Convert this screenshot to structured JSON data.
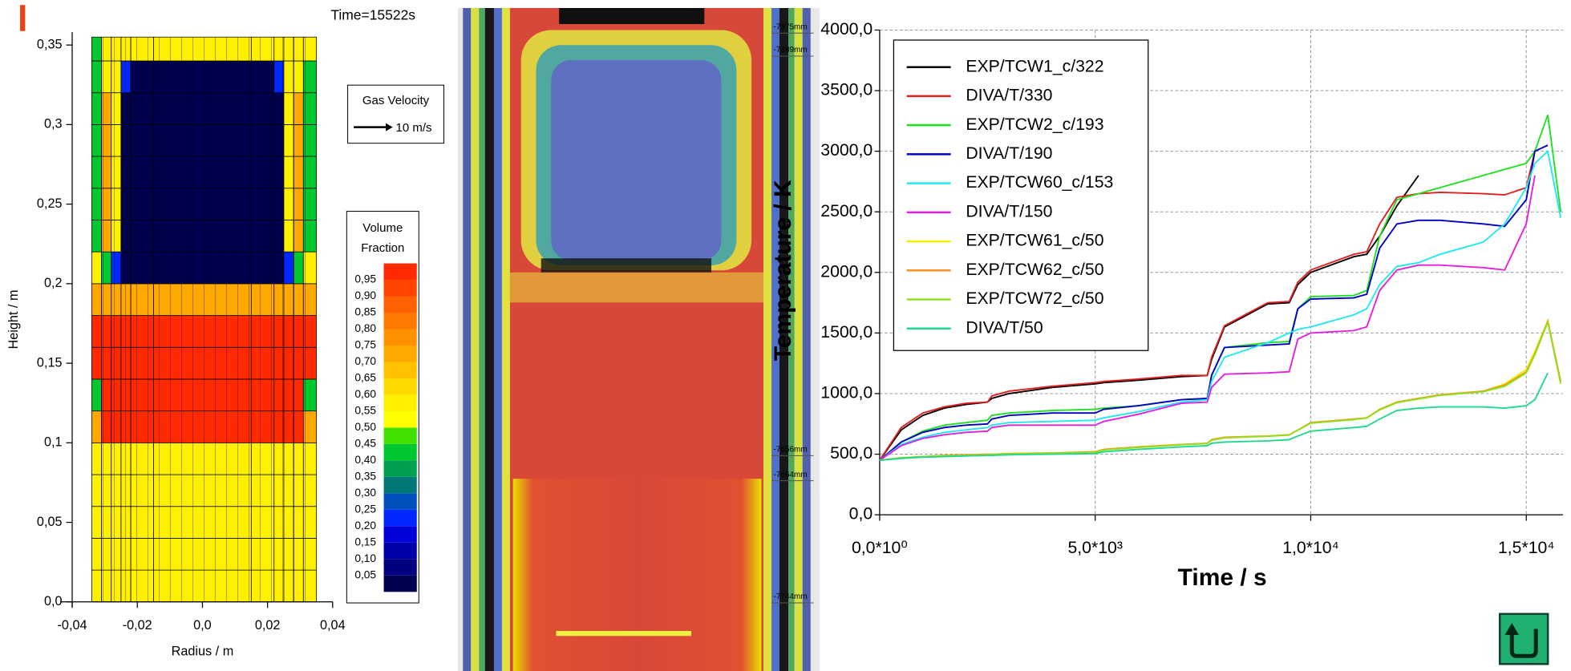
{
  "chart_data": [
    {
      "type": "heatmap",
      "title": "Time=15522s",
      "x_label": "Radius / m",
      "y_label": "Height / m",
      "xlim": [
        -0.04,
        0.04
      ],
      "ylim": [
        0,
        0.355
      ],
      "xticks": [
        {
          "value": -0.04,
          "label": "-0,04"
        },
        {
          "value": -0.02,
          "label": "-0,02"
        },
        {
          "value": 0,
          "label": "0,0"
        },
        {
          "value": 0.02,
          "label": "0,02"
        },
        {
          "value": 0.04,
          "label": "0,04"
        }
      ],
      "yticks": [
        {
          "value": 0,
          "label": "0,0"
        },
        {
          "value": 0.05,
          "label": "0,05"
        },
        {
          "value": 0.1,
          "label": "0,1"
        },
        {
          "value": 0.15,
          "label": "0,15"
        },
        {
          "value": 0.2,
          "label": "0,2"
        },
        {
          "value": 0.25,
          "label": "0,25"
        },
        {
          "value": 0.3,
          "label": "0,3"
        },
        {
          "value": 0.35,
          "label": "0,35"
        }
      ],
      "x_edges": [
        -0.034,
        -0.031,
        -0.028,
        -0.025,
        -0.022,
        -0.015,
        0.015,
        0.022,
        0.025,
        0.028,
        0.031,
        0.035
      ],
      "y_edges": [
        0,
        0.02,
        0.04,
        0.06,
        0.08,
        0.1,
        0.12,
        0.14,
        0.16,
        0.18,
        0.2,
        0.22,
        0.24,
        0.26,
        0.28,
        0.3,
        0.32,
        0.34,
        0.355
      ],
      "z": [
        [
          0.57,
          0.57,
          0.57,
          0.57,
          0.57,
          0.57,
          0.57,
          0.57,
          0.57,
          0.57,
          0.57
        ],
        [
          0.57,
          0.57,
          0.57,
          0.57,
          0.57,
          0.57,
          0.57,
          0.57,
          0.57,
          0.57,
          0.57
        ],
        [
          0.57,
          0.57,
          0.57,
          0.57,
          0.57,
          0.57,
          0.57,
          0.57,
          0.57,
          0.57,
          0.57
        ],
        [
          0.57,
          0.57,
          0.57,
          0.57,
          0.57,
          0.57,
          0.57,
          0.57,
          0.57,
          0.57,
          0.57
        ],
        [
          0.57,
          0.57,
          0.57,
          0.57,
          0.57,
          0.57,
          0.57,
          0.57,
          0.57,
          0.57,
          0.57
        ],
        [
          0.72,
          0.97,
          0.97,
          0.97,
          0.97,
          0.97,
          0.97,
          0.97,
          0.97,
          0.97,
          0.72
        ],
        [
          0.42,
          0.97,
          0.97,
          0.97,
          0.97,
          0.97,
          0.97,
          0.97,
          0.97,
          0.97,
          0.42
        ],
        [
          0.97,
          0.97,
          0.97,
          0.97,
          0.97,
          0.97,
          0.97,
          0.97,
          0.97,
          0.97,
          0.97
        ],
        [
          0.97,
          0.97,
          0.97,
          0.97,
          0.97,
          0.97,
          0.97,
          0.97,
          0.97,
          0.97,
          0.97
        ],
        [
          0.72,
          0.72,
          0.72,
          0.72,
          0.72,
          0.72,
          0.72,
          0.72,
          0.72,
          0.72,
          0.72
        ],
        [
          0.57,
          0.42,
          0.22,
          0.02,
          0.02,
          0.02,
          0.02,
          0.02,
          0.22,
          0.42,
          0.57
        ],
        [
          0.42,
          0.72,
          0.57,
          0.02,
          0.02,
          0.02,
          0.02,
          0.02,
          0.57,
          0.72,
          0.42
        ],
        [
          0.42,
          0.72,
          0.57,
          0.02,
          0.02,
          0.02,
          0.02,
          0.02,
          0.57,
          0.72,
          0.42
        ],
        [
          0.42,
          0.72,
          0.57,
          0.02,
          0.02,
          0.02,
          0.02,
          0.02,
          0.57,
          0.72,
          0.42
        ],
        [
          0.42,
          0.72,
          0.57,
          0.02,
          0.02,
          0.02,
          0.02,
          0.02,
          0.57,
          0.72,
          0.42
        ],
        [
          0.42,
          0.72,
          0.57,
          0.02,
          0.02,
          0.02,
          0.02,
          0.02,
          0.57,
          0.72,
          0.42
        ],
        [
          0.42,
          0.57,
          0.57,
          0.22,
          0.02,
          0.02,
          0.02,
          0.22,
          0.57,
          0.57,
          0.42
        ],
        [
          0.42,
          0.57,
          0.57,
          0.57,
          0.57,
          0.57,
          0.57,
          0.57,
          0.57,
          0.57,
          0.57
        ]
      ],
      "velocity_legend": {
        "title": "Gas Velocity",
        "label": "10 m/s"
      },
      "colorbar": {
        "title": [
          "Volume",
          "Fraction"
        ],
        "levels": [
          {
            "value": 0.05,
            "label": "0,05"
          },
          {
            "value": 0.1,
            "label": "0,10"
          },
          {
            "value": 0.15,
            "label": "0,15"
          },
          {
            "value": 0.2,
            "label": "0,20"
          },
          {
            "value": 0.25,
            "label": "0,25"
          },
          {
            "value": 0.3,
            "label": "0,30"
          },
          {
            "value": 0.35,
            "label": "0,35"
          },
          {
            "value": 0.4,
            "label": "0,40"
          },
          {
            "value": 0.45,
            "label": "0,45"
          },
          {
            "value": 0.5,
            "label": "0,50"
          },
          {
            "value": 0.55,
            "label": "0,55"
          },
          {
            "value": 0.6,
            "label": "0,60"
          },
          {
            "value": 0.65,
            "label": "0,65"
          },
          {
            "value": 0.7,
            "label": "0,70"
          },
          {
            "value": 0.75,
            "label": "0,75"
          },
          {
            "value": 0.8,
            "label": "0,80"
          },
          {
            "value": 0.85,
            "label": "0,85"
          },
          {
            "value": 0.9,
            "label": "0,90"
          },
          {
            "value": 0.95,
            "label": "0,95"
          }
        ],
        "colors": [
          "#000050",
          "#000080",
          "#0000a8",
          "#0000d8",
          "#0028ff",
          "#0050c0",
          "#007878",
          "#00a050",
          "#00c830",
          "#40e000",
          "#ffff00",
          "#fff000",
          "#ffd800",
          "#ffc000",
          "#ffa800",
          "#ff9000",
          "#ff7800",
          "#ff6000",
          "#ff4400",
          "#ff2a00"
        ]
      }
    },
    {
      "type": "line",
      "x_label": "Time / s",
      "y_label": "Temperature / K",
      "xlim": [
        0,
        15850
      ],
      "ylim": [
        0,
        4000
      ],
      "grid": true,
      "legend": "top-left",
      "xticks": [
        {
          "value": 0,
          "label": "0,0*10⁰"
        },
        {
          "value": 5000,
          "label": "5,0*10³"
        },
        {
          "value": 10000,
          "label": "1,0*10⁴"
        },
        {
          "value": 15000,
          "label": "1,5*10⁴"
        }
      ],
      "yticks": [
        {
          "value": 0,
          "label": "0,0"
        },
        {
          "value": 500,
          "label": "500,0"
        },
        {
          "value": 1000,
          "label": "1000,0"
        },
        {
          "value": 1500,
          "label": "1500,0"
        },
        {
          "value": 2000,
          "label": "2000,0"
        },
        {
          "value": 2500,
          "label": "2500,0"
        },
        {
          "value": 3000,
          "label": "3000,0"
        },
        {
          "value": 3500,
          "label": "3500,0"
        },
        {
          "value": 4000,
          "label": "4000,0"
        }
      ],
      "x": [
        0,
        500,
        1000,
        1500,
        2000,
        2500,
        2600,
        3000,
        4000,
        5000,
        5200,
        6000,
        7000,
        7600,
        7700,
        8000,
        9000,
        9500,
        9700,
        10000,
        11000,
        11300,
        11600,
        12000,
        12500,
        13000,
        14000,
        14500,
        15000,
        15200,
        15500,
        15800
      ],
      "series": [
        {
          "name": "EXP/TCW1_c/322",
          "color": "#000000",
          "values": [
            450,
            700,
            820,
            880,
            910,
            930,
            960,
            1000,
            1050,
            1080,
            1090,
            1110,
            1140,
            1150,
            1280,
            1550,
            1740,
            1750,
            1900,
            2000,
            2130,
            2150,
            2300,
            2550,
            2800,
            null,
            null,
            null,
            null,
            null,
            null,
            null
          ]
        },
        {
          "name": "DIVA/T/330",
          "color": "#e02020",
          "values": [
            450,
            720,
            840,
            890,
            920,
            930,
            980,
            1020,
            1060,
            1090,
            1100,
            1120,
            1150,
            1150,
            1300,
            1560,
            1750,
            1760,
            1920,
            2020,
            2150,
            2170,
            2400,
            2620,
            2650,
            2660,
            2650,
            2640,
            2700,
            3000,
            null,
            null
          ]
        },
        {
          "name": "EXP/TCW2_c/193",
          "color": "#20e020",
          "values": [
            450,
            600,
            690,
            740,
            760,
            780,
            820,
            840,
            860,
            870,
            880,
            900,
            950,
            960,
            1150,
            1380,
            1420,
            1430,
            1700,
            1800,
            1810,
            1850,
            2300,
            2600,
            2650,
            2700,
            2800,
            2850,
            2900,
            3000,
            3300,
            2500
          ]
        },
        {
          "name": "DIVA/T/190",
          "color": "#0000c0",
          "values": [
            450,
            600,
            680,
            720,
            740,
            750,
            790,
            820,
            840,
            840,
            870,
            900,
            950,
            960,
            1150,
            1380,
            1400,
            1410,
            1700,
            1780,
            1790,
            1820,
            2200,
            2400,
            2430,
            2430,
            2400,
            2380,
            2600,
            3000,
            3050,
            null
          ]
        },
        {
          "name": "EXP/TCW60_c/153",
          "color": "#20e8f0",
          "values": [
            450,
            580,
            640,
            680,
            700,
            720,
            740,
            760,
            770,
            780,
            800,
            850,
            930,
            950,
            1100,
            1300,
            1420,
            1500,
            1530,
            1550,
            1650,
            1700,
            1900,
            2050,
            2080,
            2150,
            2250,
            2400,
            2700,
            2900,
            3000,
            2450
          ]
        },
        {
          "name": "DIVA/T/150",
          "color": "#e020e0",
          "values": [
            450,
            570,
            630,
            660,
            680,
            690,
            720,
            740,
            740,
            740,
            770,
            830,
            920,
            930,
            1050,
            1160,
            1170,
            1180,
            1450,
            1500,
            1520,
            1550,
            1850,
            2020,
            2060,
            2060,
            2040,
            2020,
            2400,
            2800,
            null,
            null
          ]
        },
        {
          "name": "EXP/TCW61_c/50",
          "color": "#f0f000",
          "values": [
            450,
            470,
            480,
            490,
            495,
            500,
            500,
            505,
            510,
            520,
            540,
            560,
            580,
            590,
            620,
            640,
            650,
            660,
            700,
            760,
            790,
            800,
            870,
            930,
            960,
            990,
            1020,
            1080,
            1200,
            1350,
            1600,
            1100
          ]
        },
        {
          "name": "EXP/TCW62_c/50",
          "color": "#ff9020",
          "values": [
            450,
            470,
            480,
            490,
            495,
            500,
            500,
            505,
            510,
            520,
            540,
            560,
            580,
            590,
            620,
            640,
            650,
            660,
            700,
            760,
            790,
            800,
            870,
            930,
            960,
            990,
            1020,
            1070,
            1180,
            1330,
            1600,
            1100
          ]
        },
        {
          "name": "EXP/TCW72_c/50",
          "color": "#90e020",
          "values": [
            450,
            470,
            480,
            485,
            490,
            495,
            500,
            502,
            508,
            515,
            535,
            555,
            578,
            588,
            615,
            635,
            648,
            658,
            698,
            755,
            785,
            798,
            865,
            925,
            955,
            985,
            1015,
            1060,
            1170,
            1320,
            1590,
            1080
          ]
        },
        {
          "name": "DIVA/T/50",
          "color": "#20d890",
          "values": [
            450,
            465,
            475,
            480,
            485,
            490,
            490,
            495,
            500,
            505,
            520,
            540,
            560,
            570,
            590,
            600,
            610,
            620,
            650,
            690,
            720,
            730,
            790,
            860,
            880,
            890,
            890,
            880,
            900,
            950,
            1170,
            null
          ]
        }
      ]
    }
  ],
  "photo": {
    "labels": [
      "-7375mm",
      "-7389mm",
      "-7656mm",
      "-7664mm",
      "-7744mm"
    ]
  }
}
